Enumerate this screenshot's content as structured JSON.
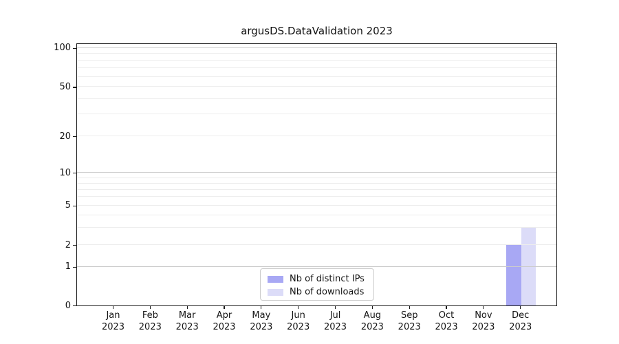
{
  "figure": {
    "title": "argusDS.DataValidation 2023"
  },
  "chart_data": {
    "type": "bar",
    "title": "argusDS.DataValidation 2023",
    "xlabel": "",
    "ylabel": "",
    "categories": [
      "Jan",
      "Feb",
      "Mar",
      "Apr",
      "May",
      "Jun",
      "Jul",
      "Aug",
      "Sep",
      "Oct",
      "Nov",
      "Dec"
    ],
    "category_year": "2023",
    "series": [
      {
        "name": "Nb of distinct IPs",
        "color": "#a8a8f4",
        "values": [
          0,
          0,
          0,
          0,
          0,
          0,
          0,
          0,
          0,
          0,
          0,
          2
        ]
      },
      {
        "name": "Nb of downloads",
        "color": "#dcdcf8",
        "values": [
          0,
          0,
          0,
          0,
          0,
          0,
          0,
          0,
          0,
          0,
          0,
          3
        ]
      }
    ],
    "y_axis": {
      "scale": "asinh",
      "ylim": [
        0,
        110
      ],
      "grid": true,
      "labeled_ticks": [
        0,
        1,
        2,
        5,
        10,
        20,
        50,
        100
      ],
      "strong_gridlines": [
        1,
        10,
        100
      ],
      "minor_gridlines": [
        2,
        3,
        4,
        5,
        6,
        7,
        8,
        9,
        20,
        30,
        40,
        50,
        60,
        70,
        80,
        90
      ],
      "tick_fractions": [
        [
          0,
          0.0
        ],
        [
          1,
          0.1472
        ],
        [
          2,
          0.23
        ],
        [
          3,
          0.2965
        ],
        [
          4,
          0.3436
        ],
        [
          5,
          0.3803
        ],
        [
          6,
          0.413
        ],
        [
          7,
          0.4408
        ],
        [
          8,
          0.4649
        ],
        [
          9,
          0.4861
        ],
        [
          10,
          0.505
        ],
        [
          20,
          0.6448
        ],
        [
          30,
          0.7278
        ],
        [
          40,
          0.7867
        ],
        [
          50,
          0.8323
        ],
        [
          60,
          0.8713
        ],
        [
          70,
          0.9044
        ],
        [
          80,
          0.9332
        ],
        [
          90,
          0.9583
        ],
        [
          100,
          0.9809
        ]
      ]
    },
    "legend": {
      "position": "lower center",
      "entries": [
        "Nb of distinct IPs",
        "Nb of downloads"
      ]
    }
  }
}
